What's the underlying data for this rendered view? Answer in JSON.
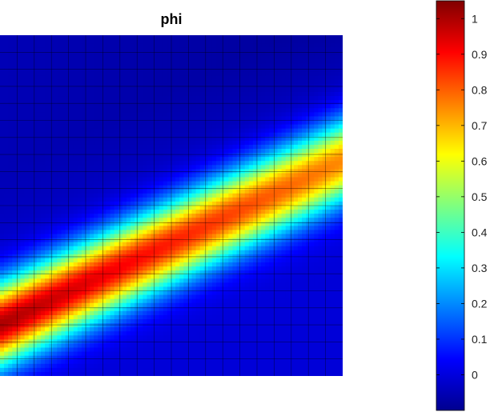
{
  "chart_data": {
    "type": "heatmap",
    "title": "phi",
    "xlabel": "",
    "ylabel": "",
    "grid": true,
    "grid_cells": [
      20,
      20
    ],
    "colormap": "jet",
    "field": {
      "description": "Gaussian ridge along a diagonal band from lower-left to upper-right",
      "ridge_start": {
        "x": 0.0,
        "y": 0.85,
        "value": 1.0
      },
      "ridge_end": {
        "x": 1.0,
        "y": 0.37,
        "value": 0.75
      },
      "ridge_width_sigma": 0.075,
      "minimum_value": -0.07,
      "minimum_location": "upper-right corner"
    },
    "colorbar": {
      "min": -0.1,
      "max": 1.05,
      "ticks": [
        0,
        0.1,
        0.2,
        0.3,
        0.4,
        0.5,
        0.6,
        0.7,
        0.8,
        0.9,
        1
      ],
      "tick_labels": [
        "0",
        "0.1",
        "0.2",
        "0.3",
        "0.4",
        "0.5",
        "0.6",
        "0.7",
        "0.8",
        "0.9",
        "1"
      ]
    }
  }
}
